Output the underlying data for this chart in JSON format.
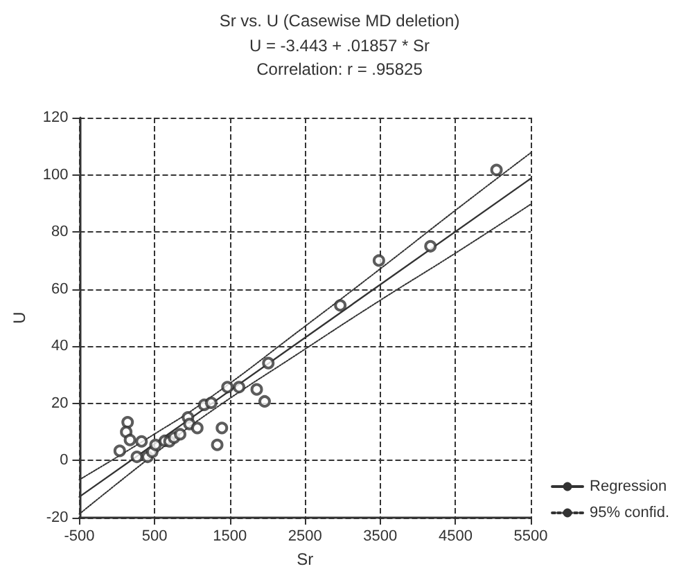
{
  "chart_data": {
    "type": "scatter",
    "title": "Sr vs. U (Casewise MD deletion)",
    "subtitle": "U = -3.443 + .01857 * Sr",
    "annotations": [
      "Correlation: r = .95825"
    ],
    "xlabel": "Sr",
    "ylabel": "U",
    "xlim": [
      -500,
      5500
    ],
    "xticks": [
      -500,
      500,
      1500,
      2500,
      3500,
      4500,
      5500
    ],
    "ylim": [
      -20,
      120
    ],
    "yticks": [
      -20,
      0,
      20,
      40,
      60,
      80,
      100,
      120
    ],
    "grid": true,
    "legend": "bottom right",
    "marker": "circle",
    "series": [
      {
        "color": "#333333",
        "x": [
          37,
          142,
          123,
          173,
          265,
          327,
          407,
          469,
          512,
          636,
          698,
          759,
          840,
          944,
          963,
          1068,
          1160,
          1253,
          1333,
          1395,
          1469,
          1623,
          1858,
          1963,
          2012,
          2969,
          3482,
          4167,
          5045
        ],
        "values": [
          3.4,
          13.4,
          10,
          7.2,
          1.3,
          6.7,
          1.3,
          3,
          5.5,
          6.9,
          6.7,
          8,
          9.2,
          15.1,
          12.8,
          11.4,
          19.5,
          20.2,
          5.5,
          11.4,
          25.7,
          25.7,
          24.9,
          20.7,
          34.1,
          54.3,
          70,
          75,
          101.7
        ]
      },
      {
        "type": "line",
        "name": "Regression",
        "color": "#333333",
        "marker": "none",
        "line_style": "solid",
        "x": [
          -500,
          5500
        ],
        "values": [
          -12.7,
          98.7
        ]
      },
      {
        "type": "line",
        "name": "95% confid.",
        "color": "#333333",
        "marker": "none",
        "line_style": "dotted",
        "x": [
          -500,
          500,
          1200,
          2500,
          3500,
          4500,
          5500
        ],
        "values": [
          -6.7,
          9.3,
          21.3,
          47.0,
          67.1,
          87.6,
          107.7
        ]
      },
      {
        "type": "line",
        "color": "#333333",
        "marker": "none",
        "line_style": "dotted",
        "x": [
          -500,
          500,
          1200,
          2500,
          3500,
          4500,
          5500
        ],
        "values": [
          -18.7,
          2.3,
          16.3,
          39.0,
          56.1,
          72.6,
          89.7
        ]
      }
    ]
  }
}
